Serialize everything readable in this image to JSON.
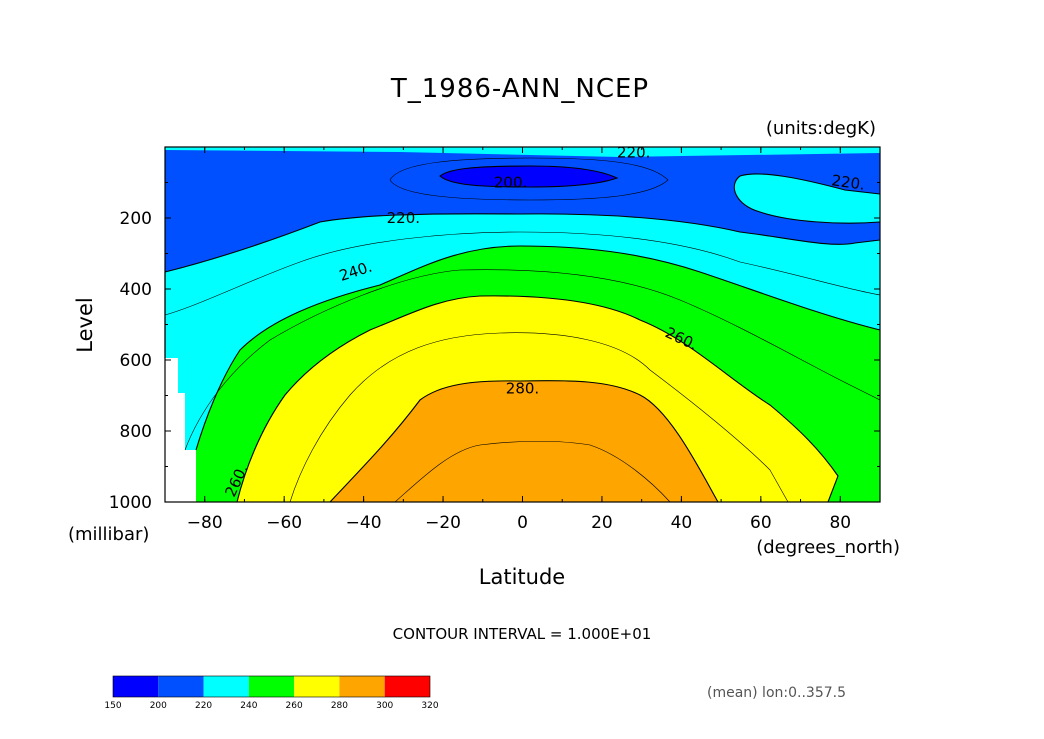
{
  "chart_data": {
    "type": "heatmap",
    "title": "T_1986-ANN_NCEP",
    "units_label": "(units:degK)",
    "xlabel": "Latitude",
    "x_units_label": "(degrees_north)",
    "ylabel": "Level",
    "y_units_label": "(millibar)",
    "xlim": [
      -90,
      90
    ],
    "ylim": [
      1000,
      0
    ],
    "x_ticks": [
      -80,
      -60,
      -40,
      -20,
      0,
      20,
      40,
      60,
      80
    ],
    "y_ticks": [
      200,
      400,
      600,
      800,
      1000
    ],
    "contour_interval_text": "CONTOUR INTERVAL = 1.000E+01",
    "mean_text": "(mean) lon:0..357.5",
    "contour_labels": [
      {
        "text": "220.",
        "lat": 28,
        "level": 15
      },
      {
        "text": "200.",
        "lat": -3,
        "level": 100
      },
      {
        "text": "220.",
        "lat": 82,
        "level": 100
      },
      {
        "text": "220.",
        "lat": -30,
        "level": 200
      },
      {
        "text": "240.",
        "lat": -42,
        "level": 350
      },
      {
        "text": "260.",
        "lat": 40,
        "level": 540
      },
      {
        "text": "280.",
        "lat": 0,
        "level": 680
      },
      {
        "text": "260.",
        "lat": -72,
        "level": 940
      }
    ],
    "colorbar": {
      "levels": [
        150,
        200,
        220,
        240,
        260,
        280,
        300,
        320
      ],
      "colors": [
        "#0000ff",
        "#0050ff",
        "#00ffff",
        "#00ff00",
        "#ffff00",
        "#ffa500",
        "#ff0000"
      ]
    }
  }
}
